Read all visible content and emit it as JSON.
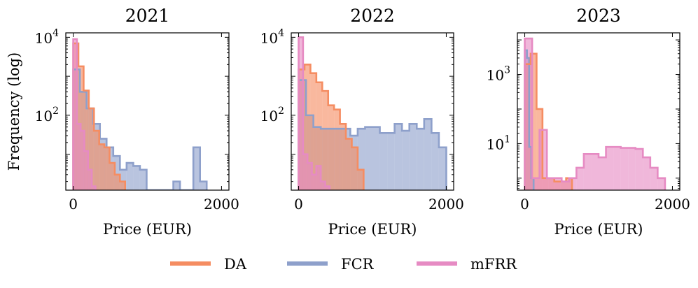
{
  "colors": {
    "DA": "#f58d62",
    "FCR": "#8ea0cb",
    "mFRR": "#e68bc3"
  },
  "legend": [
    {
      "name": "DA",
      "label": "DA",
      "color": "#f58d62"
    },
    {
      "name": "FCR",
      "label": "FCR",
      "color": "#8ea0cb"
    },
    {
      "name": "mFRR",
      "label": "mFRR",
      "color": "#e68bc3"
    }
  ],
  "chart_data": [
    {
      "type": "histogram",
      "title": "2021",
      "xlabel": "Price (EUR)",
      "ylabel": "Frequency (log)",
      "yscale": "log",
      "xlim": [
        -100,
        2100
      ],
      "ylim": [
        1.2,
        13000
      ],
      "xticks": [
        0,
        2000
      ],
      "xtick_labels": [
        "0",
        "2000"
      ],
      "yticks": [
        {
          "value": 100,
          "base": "10",
          "exp": "2"
        },
        {
          "value": 10000,
          "base": "10",
          "exp": "4"
        }
      ],
      "series": [
        {
          "name": "FCR",
          "edges": [
            0,
            90,
            180,
            270,
            360,
            450,
            540,
            630,
            720,
            810,
            900,
            990,
            1080,
            1170,
            1260,
            1350,
            1440,
            1530,
            1620,
            1710,
            1800
          ],
          "values": [
            1500,
            400,
            150,
            60,
            25,
            15,
            9,
            4,
            6,
            5,
            4,
            1,
            1,
            1,
            1,
            2,
            1,
            1,
            15,
            2
          ]
        },
        {
          "name": "DA",
          "edges": [
            0,
            70,
            140,
            210,
            280,
            350,
            420,
            490,
            560,
            630,
            700
          ],
          "values": [
            7000,
            1800,
            430,
            150,
            40,
            18,
            15,
            6,
            3,
            2
          ]
        },
        {
          "name": "mFRR",
          "edges": [
            0,
            50,
            100,
            150,
            200,
            250,
            300
          ],
          "values": [
            9000,
            60,
            40,
            12,
            4,
            1.5
          ]
        }
      ]
    },
    {
      "type": "histogram",
      "title": "2022",
      "xlabel": "Price (EUR)",
      "ylabel": "",
      "yscale": "log",
      "xlim": [
        -100,
        2100
      ],
      "ylim": [
        1.2,
        13000
      ],
      "xticks": [
        0,
        2000
      ],
      "xtick_labels": [
        "0",
        "2000"
      ],
      "yticks": [
        {
          "value": 100,
          "base": "10",
          "exp": "2"
        },
        {
          "value": 10000,
          "base": "10",
          "exp": "4"
        }
      ],
      "series": [
        {
          "name": "FCR",
          "edges": [
            0,
            100,
            200,
            300,
            400,
            500,
            600,
            700,
            800,
            900,
            1000,
            1100,
            1200,
            1300,
            1400,
            1500,
            1600,
            1700,
            1800,
            1900,
            2000
          ],
          "values": [
            800,
            100,
            50,
            45,
            45,
            45,
            45,
            30,
            45,
            50,
            50,
            35,
            35,
            60,
            40,
            60,
            45,
            80,
            35,
            15
          ]
        },
        {
          "name": "DA",
          "edges": [
            0,
            80,
            160,
            240,
            320,
            400,
            480,
            560,
            640,
            720,
            800,
            880
          ],
          "values": [
            1500,
            2000,
            1200,
            700,
            420,
            180,
            140,
            60,
            25,
            15,
            4
          ]
        },
        {
          "name": "mFRR",
          "edges": [
            0,
            60,
            120,
            180,
            240,
            300,
            360,
            420
          ],
          "values": [
            10000,
            10,
            6,
            3,
            5,
            2,
            1.5
          ]
        }
      ]
    },
    {
      "type": "histogram",
      "title": "2023",
      "xlabel": "Price (EUR)",
      "ylabel": "",
      "yscale": "log",
      "xlim": [
        -100,
        2100
      ],
      "ylim": [
        0.45,
        16000
      ],
      "xticks": [
        0,
        2000
      ],
      "xtick_labels": [
        "0",
        "2000"
      ],
      "yticks": [
        {
          "value": 10,
          "base": "10",
          "exp": "1"
        },
        {
          "value": 1000,
          "base": "10",
          "exp": "3"
        }
      ],
      "series": [
        {
          "name": "FCR",
          "edges": [
            0,
            30,
            60,
            90,
            120
          ],
          "values": [
            5000,
            3000,
            8,
            1
          ]
        },
        {
          "name": "DA",
          "edges": [
            0,
            80,
            160,
            240,
            320,
            400,
            480,
            560,
            640
          ],
          "values": [
            2000,
            4000,
            100,
            1,
            1,
            0.8,
            0.8,
            1
          ]
        },
        {
          "name": "mFRR",
          "edges": [
            0,
            100,
            200,
            300,
            400,
            500,
            600,
            700,
            800,
            900,
            1000,
            1100,
            1200,
            1300,
            1400,
            1500,
            1600,
            1700,
            1800,
            1900
          ],
          "values": [
            11000,
            1,
            25,
            1,
            1,
            0.8,
            1,
            2,
            5,
            5,
            4,
            8,
            8,
            7.5,
            7.5,
            7,
            4,
            2,
            1
          ]
        }
      ]
    }
  ]
}
